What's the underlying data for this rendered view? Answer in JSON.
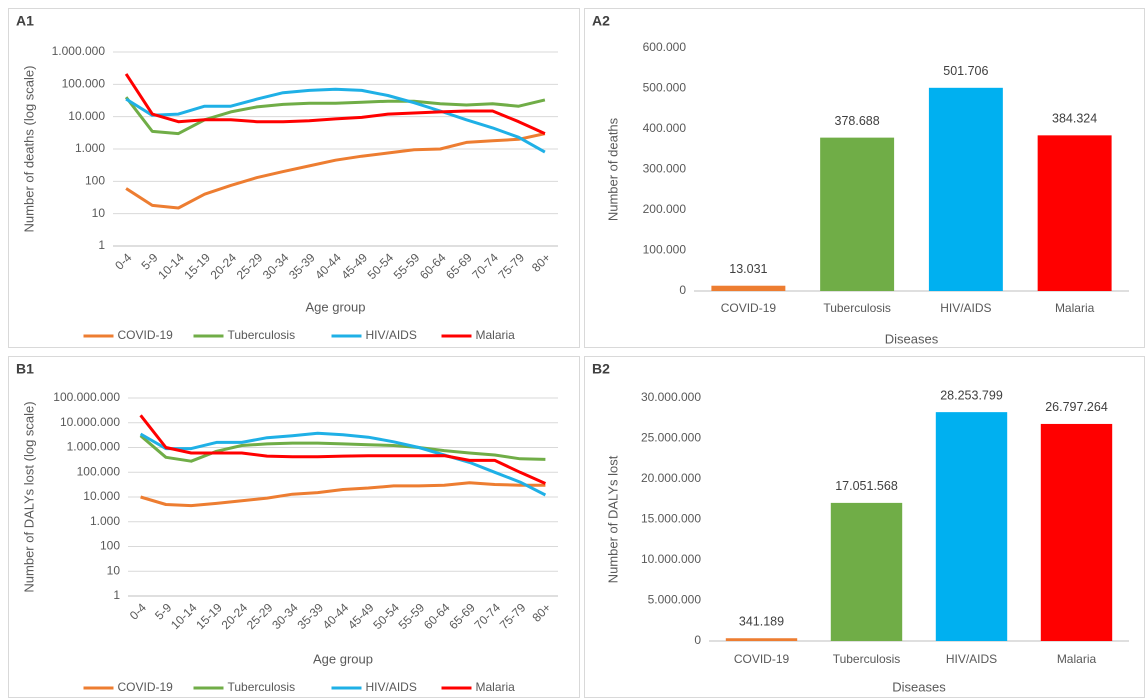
{
  "chart_data": [
    {
      "type": "line",
      "label": "A1",
      "x_label": "Age group",
      "y_label": "Number of deaths (log scale)",
      "log_scale": true,
      "grid": true,
      "legend": "bottom",
      "categories": [
        "0-4",
        "5-9",
        "10-14",
        "15-19",
        "20-24",
        "25-29",
        "30-34",
        "35-39",
        "40-44",
        "45-49",
        "50-54",
        "55-59",
        "60-64",
        "65-69",
        "70-74",
        "75-79",
        "80+"
      ],
      "series": [
        {
          "name": "COVID-19",
          "color": "#ed7d31",
          "values": [
            60,
            18,
            15,
            40,
            75,
            130,
            200,
            300,
            450,
            600,
            750,
            950,
            1000,
            1600,
            1800,
            2000,
            3000
          ]
        },
        {
          "name": "Tuberculosis",
          "color": "#70ad47",
          "values": [
            40000,
            3500,
            3000,
            8000,
            14000,
            20000,
            24000,
            26000,
            26000,
            28000,
            30000,
            30000,
            25000,
            23000,
            25000,
            21000,
            33000
          ]
        },
        {
          "name": "HIV/AIDS",
          "color": "#1fb0e6",
          "values": [
            35000,
            11000,
            12000,
            21000,
            21000,
            35000,
            55000,
            65000,
            70000,
            65000,
            45000,
            27000,
            15000,
            8000,
            4500,
            2300,
            800
          ]
        },
        {
          "name": "Malaria",
          "color": "#ff0000",
          "values": [
            210000,
            12000,
            7000,
            8000,
            8000,
            7000,
            7000,
            7500,
            8500,
            9500,
            12000,
            13000,
            14000,
            15000,
            15000,
            7000,
            3000
          ]
        }
      ],
      "ylim": [
        1,
        1000000
      ],
      "yticks": [
        1,
        10,
        100,
        {
          "value": 1000,
          "label": "1.000"
        },
        {
          "value": 10000,
          "label": "10.000"
        },
        {
          "value": 100000,
          "label": "100.000"
        },
        {
          "value": 1000000,
          "label": "1.000.000"
        }
      ]
    },
    {
      "type": "bar",
      "label": "A2",
      "x_label": "Diseases",
      "y_label": "Number of deaths",
      "grid": false,
      "categories": [
        "COVID-19",
        "Tuberculosis",
        "HIV/AIDS",
        "Malaria"
      ],
      "values": [
        13031,
        378688,
        501706,
        384324
      ],
      "value_labels": [
        "13.031",
        "378.688",
        "501.706",
        "384.324"
      ],
      "colors": [
        "#ed7d31",
        "#70ad47",
        "#00b0f0",
        "#ff0000"
      ],
      "ylim": [
        0,
        600000
      ],
      "yticks": [
        0,
        {
          "value": 100000,
          "label": "100.000"
        },
        {
          "value": 200000,
          "label": "200.000"
        },
        {
          "value": 300000,
          "label": "300.000"
        },
        {
          "value": 400000,
          "label": "400.000"
        },
        {
          "value": 500000,
          "label": "500.000"
        },
        {
          "value": 600000,
          "label": "600.000"
        }
      ]
    },
    {
      "type": "line",
      "label": "B1",
      "x_label": "Age group",
      "y_label": "Number of DALYs lost (log scale)",
      "log_scale": true,
      "grid": true,
      "legend": "bottom",
      "categories": [
        "0-4",
        "5-9",
        "10-14",
        "15-19",
        "20-24",
        "25-29",
        "30-34",
        "35-39",
        "40-44",
        "45-49",
        "50-54",
        "55-59",
        "60-64",
        "65-69",
        "70-74",
        "75-79",
        "80+"
      ],
      "series": [
        {
          "name": "COVID-19",
          "color": "#ed7d31",
          "values": [
            10000,
            5000,
            4500,
            5500,
            7000,
            9000,
            13000,
            15000,
            20000,
            23000,
            28000,
            28000,
            30000,
            38000,
            32000,
            30000,
            30000
          ]
        },
        {
          "name": "Tuberculosis",
          "color": "#70ad47",
          "values": [
            3000000,
            400000,
            280000,
            700000,
            1200000,
            1400000,
            1500000,
            1500000,
            1400000,
            1300000,
            1200000,
            1000000,
            750000,
            600000,
            500000,
            350000,
            330000
          ]
        },
        {
          "name": "HIV/AIDS",
          "color": "#1fb0e6",
          "values": [
            3500000,
            900000,
            900000,
            1600000,
            1600000,
            2500000,
            3000000,
            3800000,
            3300000,
            2600000,
            1700000,
            1000000,
            500000,
            250000,
            100000,
            40000,
            12000
          ]
        },
        {
          "name": "Malaria",
          "color": "#ff0000",
          "values": [
            20000000,
            1000000,
            600000,
            600000,
            600000,
            450000,
            420000,
            420000,
            450000,
            460000,
            460000,
            460000,
            470000,
            300000,
            300000,
            100000,
            35000
          ]
        }
      ],
      "ylim": [
        1,
        100000000
      ],
      "yticks": [
        1,
        10,
        100,
        {
          "value": 1000,
          "label": "1.000"
        },
        {
          "value": 10000,
          "label": "10.000"
        },
        {
          "value": 100000,
          "label": "100.000"
        },
        {
          "value": 1000000,
          "label": "1.000.000"
        },
        {
          "value": 10000000,
          "label": "10.000.000"
        },
        {
          "value": 100000000,
          "label": "100.000.000"
        }
      ]
    },
    {
      "type": "bar",
      "label": "B2",
      "x_label": "Diseases",
      "y_label": "Number of DALYs lost",
      "grid": false,
      "categories": [
        "COVID-19",
        "Tuberculosis",
        "HIV/AIDS",
        "Malaria"
      ],
      "values": [
        341189,
        17051568,
        28253799,
        26797264
      ],
      "value_labels": [
        "341.189",
        "17.051.568",
        "28.253.799",
        "26.797.264"
      ],
      "colors": [
        "#ed7d31",
        "#70ad47",
        "#00b0f0",
        "#ff0000"
      ],
      "ylim": [
        0,
        30000000
      ],
      "yticks": [
        0,
        {
          "value": 5000000,
          "label": "5.000.000"
        },
        {
          "value": 10000000,
          "label": "10.000.000"
        },
        {
          "value": 15000000,
          "label": "15.000.000"
        },
        {
          "value": 20000000,
          "label": "20.000.000"
        },
        {
          "value": 25000000,
          "label": "25.000.000"
        },
        {
          "value": 30000000,
          "label": "30.000.000"
        }
      ]
    }
  ]
}
